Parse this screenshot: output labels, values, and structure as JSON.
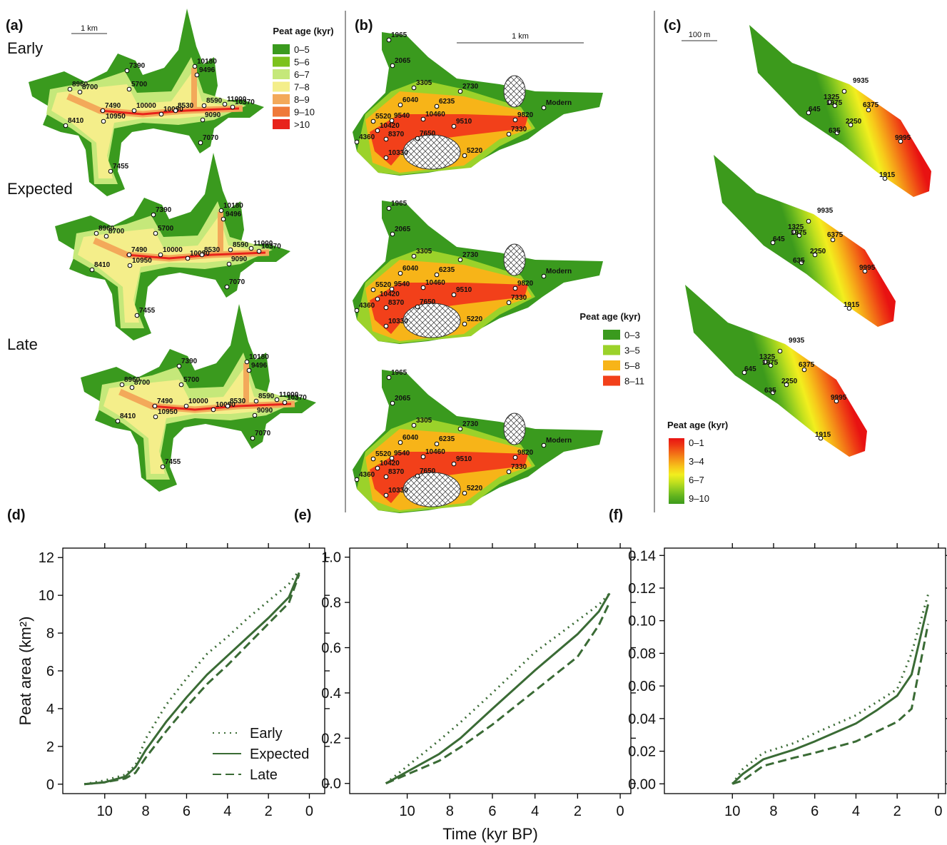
{
  "maps": [
    {
      "label": "(a)",
      "scale": "1 km",
      "legend_title": "Peat age (kyr)",
      "legend": [
        {
          "label": "0–5",
          "color": "#3a9a1e"
        },
        {
          "label": "5–6",
          "color": "#7cc21c"
        },
        {
          "label": "6–7",
          "color": "#c5e87a"
        },
        {
          "label": "7–8",
          "color": "#f4ee8a"
        },
        {
          "label": "8–9",
          "color": "#f3a95a"
        },
        {
          "label": "9–10",
          "color": "#ef7a3a"
        },
        {
          "label": ">10",
          "color": "#e8231b"
        }
      ],
      "rows": [
        "Early",
        "Expected",
        "Late"
      ],
      "sites": [
        "7390",
        "5700",
        "10180",
        "9496",
        "8960",
        "8700",
        "7490",
        "10000",
        "10950",
        "10080",
        "8530",
        "8590",
        "11000",
        "10370",
        "9090",
        "8410",
        "7070",
        "7455"
      ]
    },
    {
      "label": "(b)",
      "scale": "1 km",
      "legend_title": "Peat age (kyr)",
      "legend": [
        {
          "label": "0–3",
          "color": "#3a9a1e"
        },
        {
          "label": "3–5",
          "color": "#9bd22a"
        },
        {
          "label": "5–8",
          "color": "#f7b418"
        },
        {
          "label": "8–11",
          "color": "#f2401a"
        }
      ],
      "sites": [
        "1965",
        "2065",
        "3305",
        "2730",
        "6040",
        "6235",
        "5520",
        "9540",
        "10460",
        "9510",
        "9820",
        "Modern",
        "10420",
        "7330",
        "4360",
        "8370",
        "7650",
        "10330",
        "5220"
      ]
    },
    {
      "label": "(c)",
      "scale": "100 m",
      "legend_title": "Peat age (kyr)",
      "legend_labels": [
        "0–1",
        "3–4",
        "6–7",
        "9–10"
      ],
      "colors": [
        "#3c9a1c",
        "#5fb21e",
        "#8fcb20",
        "#c4e01e",
        "#f2ee1e",
        "#f7c81a",
        "#f59a18",
        "#f26a16",
        "#ee3a14",
        "#e81212"
      ],
      "sites": [
        "1325",
        "9935",
        "6375",
        "645",
        "1975",
        "2250",
        "635",
        "9995",
        "1915"
      ]
    }
  ],
  "chart_data": [
    {
      "type": "line",
      "title": "(d)",
      "y_label": "Peat area (km²)",
      "legend": true,
      "xlim": [
        12.05,
        -0.75
      ],
      "ylim": [
        -0.5,
        12.5
      ],
      "xticks": [
        10,
        8,
        6,
        4,
        2,
        0
      ],
      "yticks": [
        0,
        2,
        4,
        6,
        8,
        10,
        12
      ],
      "x": [
        11,
        10,
        9,
        8.5,
        8,
        7,
        6,
        5,
        4,
        3,
        2,
        1,
        0.5
      ],
      "series": [
        {
          "name": "Early",
          "color": "#3a6b35",
          "dash": "dotted",
          "values": [
            0,
            0.2,
            0.5,
            1.0,
            2.4,
            4.2,
            5.6,
            6.9,
            7.8,
            8.8,
            9.7,
            10.6,
            11.3
          ]
        },
        {
          "name": "Expected",
          "color": "#3a6b35",
          "dash": "solid",
          "values": [
            0,
            0.1,
            0.4,
            0.9,
            1.8,
            3.3,
            4.6,
            5.8,
            6.8,
            7.8,
            8.8,
            9.9,
            11.2
          ]
        },
        {
          "name": "Late",
          "color": "#3a6b35",
          "dash": "dashed",
          "values": [
            0,
            0.1,
            0.3,
            0.6,
            1.4,
            2.8,
            4.1,
            5.3,
            6.3,
            7.4,
            8.5,
            9.6,
            11.1
          ]
        }
      ]
    },
    {
      "type": "line",
      "title": "(e)",
      "x_label": "Time (kyr BP)",
      "legend": false,
      "xlim": [
        12.7,
        -0.5
      ],
      "ylim": [
        -0.045,
        1.04
      ],
      "xticks": [
        10,
        8,
        6,
        4,
        2,
        0
      ],
      "yticks": [
        {
          "value": 0,
          "label": "0.0"
        },
        0.2,
        0.4,
        0.6,
        0.8,
        {
          "value": 1,
          "label": "1.0"
        }
      ],
      "x": [
        11,
        8.5,
        7.5,
        6,
        4,
        2,
        1,
        0.5
      ],
      "series": [
        {
          "color": "#3a6b35",
          "dash": "dotted",
          "values": [
            0,
            0.19,
            0.27,
            0.4,
            0.58,
            0.72,
            0.79,
            0.84
          ]
        },
        {
          "color": "#3a6b35",
          "dash": "solid",
          "values": [
            0,
            0.13,
            0.2,
            0.33,
            0.5,
            0.66,
            0.76,
            0.84
          ]
        },
        {
          "color": "#3a6b35",
          "dash": "dashed",
          "values": [
            0,
            0.1,
            0.16,
            0.26,
            0.41,
            0.56,
            0.7,
            0.8
          ]
        }
      ]
    },
    {
      "type": "line",
      "title": "(f)",
      "legend": false,
      "xlim": [
        13.3,
        -0.35
      ],
      "ylim": [
        -0.006,
        0.1445
      ],
      "xticks": [
        10,
        8,
        6,
        4,
        2,
        0
      ],
      "yticks": [
        {
          "value": 0,
          "label": "0.00"
        },
        {
          "value": 0.02,
          "label": "0.02"
        },
        {
          "value": 0.04,
          "label": "0.04"
        },
        {
          "value": 0.06,
          "label": "0.06"
        },
        {
          "value": 0.08,
          "label": "0.08"
        },
        {
          "value": 0.1,
          "label": "0.10"
        },
        {
          "value": 0.12,
          "label": "0.12"
        },
        {
          "value": 0.14,
          "label": "0.14"
        }
      ],
      "x": [
        10,
        9.5,
        8.5,
        7,
        6,
        4,
        3,
        2,
        1.3,
        0.5
      ],
      "series": [
        {
          "color": "#3a6b35",
          "dash": "dotted",
          "values": [
            0,
            0.009,
            0.019,
            0.025,
            0.031,
            0.042,
            0.05,
            0.058,
            0.08,
            0.116
          ]
        },
        {
          "color": "#3a6b35",
          "dash": "solid",
          "values": [
            0,
            0.006,
            0.015,
            0.021,
            0.026,
            0.037,
            0.045,
            0.054,
            0.067,
            0.11
          ]
        },
        {
          "color": "#3a6b35",
          "dash": "dashed",
          "values": [
            0,
            0.002,
            0.011,
            0.016,
            0.019,
            0.026,
            0.032,
            0.038,
            0.046,
            0.098
          ]
        }
      ]
    }
  ]
}
